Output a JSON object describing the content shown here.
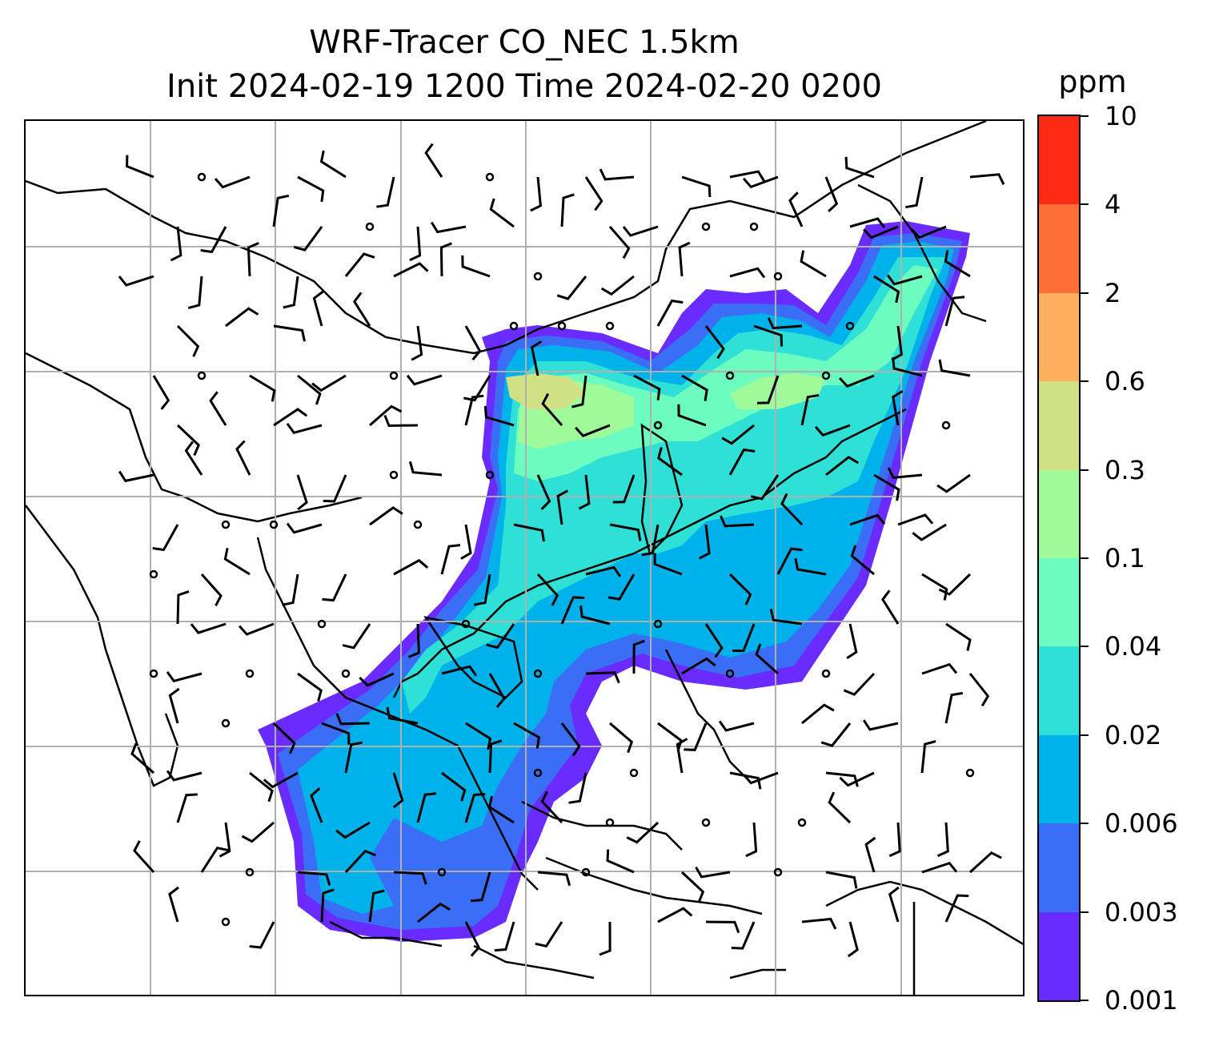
{
  "title": {
    "line1": "WRF-Tracer CO_NEC 1.5km",
    "line2": "Init 2024-02-19 1200 Time 2024-02-20 0200"
  },
  "colorbar": {
    "unit": "ppm",
    "labels": [
      "0.001",
      "0.003",
      "0.006",
      "0.02",
      "0.04",
      "0.1",
      "0.3",
      "0.6",
      "2",
      "4",
      "10"
    ],
    "colors": [
      "#6a2bff",
      "#3a6ff5",
      "#00b2ea",
      "#2ee0d6",
      "#6cfcc0",
      "#9ffa9a",
      "#cfe184",
      "#ffb05e",
      "#ff7038",
      "#ff2a14"
    ]
  },
  "map": {
    "gridlines": true,
    "plume_levels": [
      "#6a2bff",
      "#3a6ff5",
      "#00b2ea",
      "#2ee0d6",
      "#6cfcc0",
      "#9ffa9a",
      "#cfe184"
    ],
    "wind_barbs": true,
    "calm_markers": true
  }
}
